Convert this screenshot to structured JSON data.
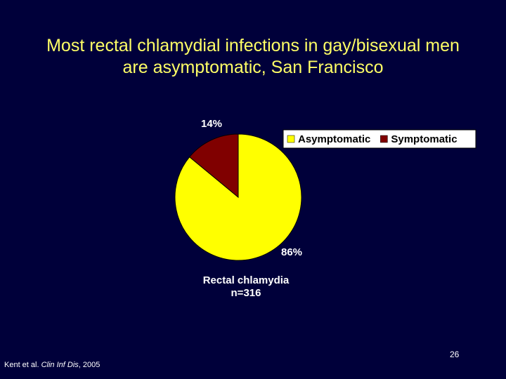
{
  "chart_data": {
    "type": "pie",
    "title": "Most rectal chlamydial infections in gay/bisexual men are asymptomatic, San Francisco",
    "categories": [
      "Asymptomatic",
      "Symptomatic"
    ],
    "values": [
      86,
      14
    ],
    "value_labels": [
      "86%",
      "14%"
    ],
    "colors": [
      "#ffff00",
      "#800000"
    ],
    "caption": [
      "Rectal chlamydia",
      "n=316"
    ]
  },
  "footer": {
    "author": "Kent et al. ",
    "journal": "Clin Inf Dis",
    "year": ", 2005"
  },
  "page_number": "26"
}
